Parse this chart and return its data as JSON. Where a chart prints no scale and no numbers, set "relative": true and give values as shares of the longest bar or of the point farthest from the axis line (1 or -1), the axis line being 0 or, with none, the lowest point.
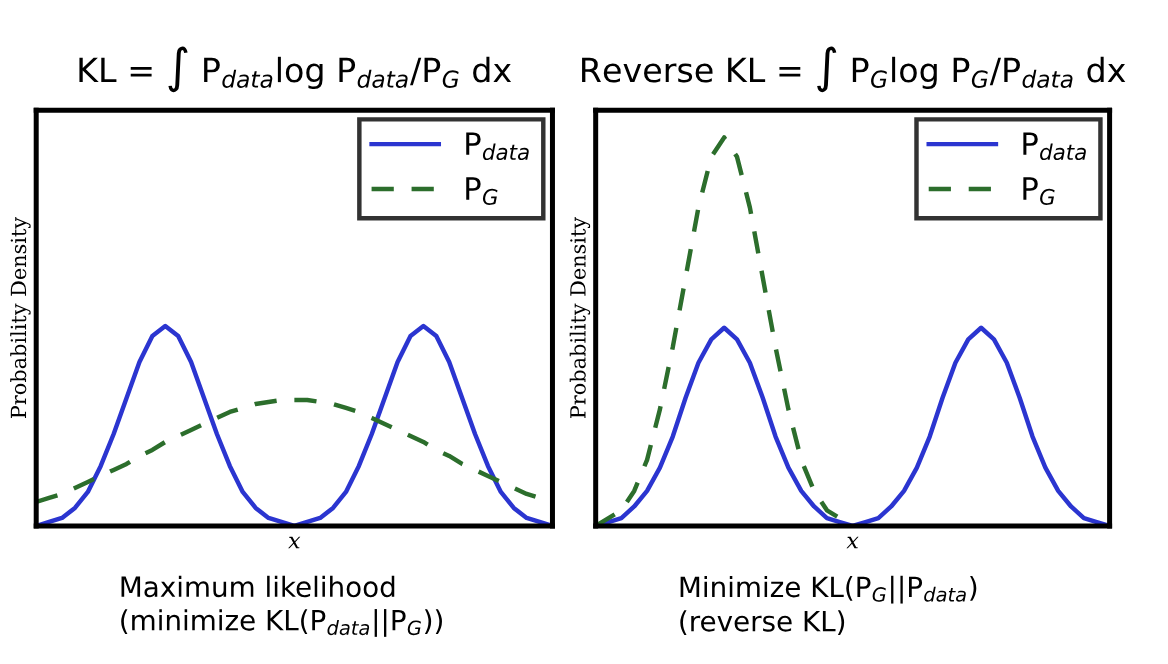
{
  "chart_data": [
    {
      "type": "line",
      "relative": true,
      "title": "KL = ∫ P$_{data}$log P$_{data}$/P$_{G}$ dx",
      "xlabel": "x",
      "ylabel": "Probability Density",
      "legend": "top right",
      "grid": false,
      "tick_labels": false,
      "annotations": [
        "Maximum likelihood\n(minimize KL(P$_{data}$||P$_{G}$))"
      ],
      "categories": [
        null,
        null,
        null,
        null,
        null,
        null,
        null,
        null,
        null,
        null,
        null,
        null,
        null,
        null,
        null,
        null,
        null,
        null,
        null,
        null,
        null,
        null,
        null,
        null,
        null,
        null,
        null,
        null,
        null,
        null,
        null,
        null,
        null,
        null,
        null,
        null,
        null,
        null,
        null,
        null,
        null
      ],
      "series": [
        {
          "name": "P$_{data}$",
          "color": "#2b35d0",
          "line_style": "solid",
          "values": [
            0,
            0.02,
            0.04,
            0.09,
            0.17,
            0.3,
            0.46,
            0.64,
            0.82,
            0.95,
            1,
            0.95,
            0.82,
            0.64,
            0.46,
            0.3,
            0.17,
            0.09,
            0.04,
            0.02,
            0,
            0.02,
            0.04,
            0.09,
            0.17,
            0.3,
            0.46,
            0.64,
            0.82,
            0.95,
            1,
            0.95,
            0.82,
            0.64,
            0.46,
            0.3,
            0.17,
            0.09,
            0.04,
            0.02,
            0
          ]
        },
        {
          "name": "P$_{G}$",
          "color": "#2c6e2c",
          "line_style": "dashed",
          "values": [
            0.12,
            0.14,
            0.16,
            0.19,
            0.22,
            0.25,
            0.28,
            0.31,
            0.35,
            0.38,
            0.42,
            0.45,
            0.48,
            0.51,
            0.54,
            0.57,
            0.59,
            0.61,
            0.62,
            0.63,
            0.63,
            0.63,
            0.62,
            0.61,
            0.59,
            0.57,
            0.54,
            0.51,
            0.48,
            0.45,
            0.42,
            0.38,
            0.35,
            0.31,
            0.28,
            0.25,
            0.22,
            0.19,
            0.16,
            0.14,
            0.12
          ]
        }
      ]
    },
    {
      "type": "line",
      "relative": true,
      "title": "Reverse KL = ∫ P$_{G}$log P$_{G}$/P$_{data}$ dx",
      "xlabel": "x",
      "ylabel": "Probability Density",
      "legend": "top right",
      "grid": false,
      "tick_labels": false,
      "annotations": [
        "Minimize KL(P$_{G}$||P$_{data}$)\n(reverse KL)"
      ],
      "categories": [
        null,
        null,
        null,
        null,
        null,
        null,
        null,
        null,
        null,
        null,
        null,
        null,
        null,
        null,
        null,
        null,
        null,
        null,
        null,
        null,
        null,
        null,
        null,
        null,
        null,
        null,
        null,
        null,
        null,
        null,
        null,
        null,
        null,
        null,
        null,
        null,
        null,
        null,
        null,
        null,
        null
      ],
      "series": [
        {
          "name": "P$_{data}$",
          "color": "#2b35d0",
          "line_style": "solid",
          "values": [
            0,
            0.01,
            0.02,
            0.05,
            0.09,
            0.15,
            0.23,
            0.33,
            0.42,
            0.48,
            0.51,
            0.48,
            0.42,
            0.33,
            0.23,
            0.15,
            0.09,
            0.05,
            0.02,
            0.01,
            0,
            0.01,
            0.02,
            0.05,
            0.09,
            0.15,
            0.23,
            0.33,
            0.42,
            0.48,
            0.51,
            0.48,
            0.42,
            0.33,
            0.23,
            0.15,
            0.09,
            0.05,
            0.02,
            0.01,
            0
          ]
        },
        {
          "name": "P$_{G}$",
          "color": "#2c6e2c",
          "line_style": "dashed",
          "values": [
            0,
            0.02,
            0.04,
            0.09,
            0.17,
            0.3,
            0.46,
            0.64,
            0.82,
            0.95,
            1,
            0.95,
            0.82,
            0.64,
            0.46,
            0.3,
            0.17,
            0.09,
            0.04,
            0.02,
            0,
            null,
            null,
            null,
            null,
            null,
            null,
            null,
            null,
            null,
            null,
            null,
            null,
            null,
            null,
            null,
            null,
            null,
            null,
            null,
            null
          ]
        }
      ]
    }
  ]
}
